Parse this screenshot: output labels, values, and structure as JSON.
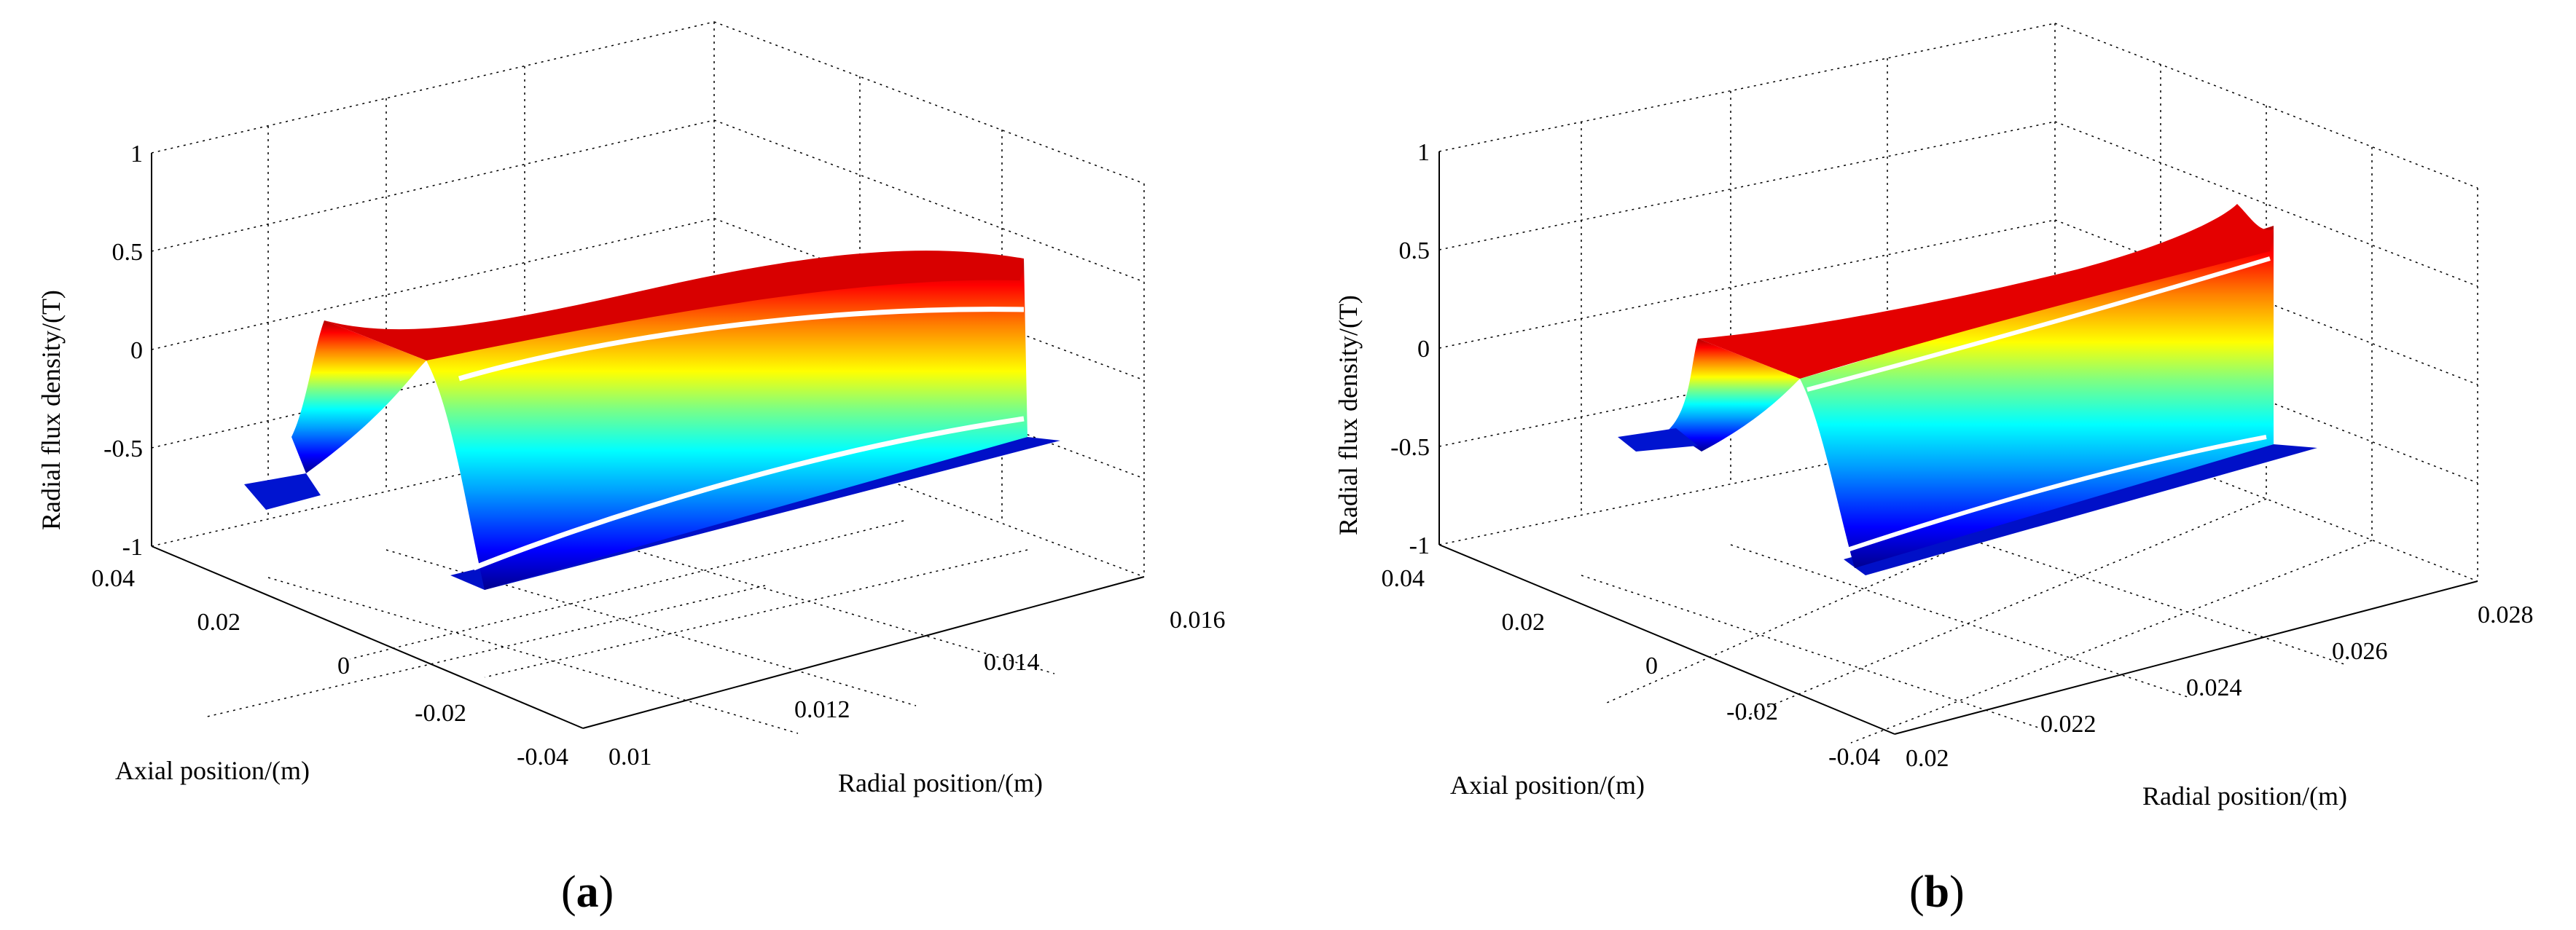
{
  "chart_data": [
    {
      "type": "surface",
      "panel": "a",
      "caption_letter": "a",
      "xlabel": "Radial position/(m)",
      "ylabel": "Axial position/(m)",
      "zlabel": "Radial flux density/(T)",
      "x_ticks": [
        "0.01",
        "0.012",
        "0.014",
        "0.016"
      ],
      "y_ticks": [
        "0.04",
        "0.02",
        "0",
        "-0.02",
        "-0.04"
      ],
      "z_ticks": [
        "1",
        "0.5",
        "0",
        "-0.5",
        "-1"
      ],
      "xlim": [
        0.01,
        0.016
      ],
      "ylim": [
        -0.04,
        0.04
      ],
      "zlim": [
        -1,
        1
      ],
      "grid": true,
      "colormap": [
        "#00008f",
        "#0000ff",
        "#00a0ff",
        "#00ffff",
        "#80ff80",
        "#ffff00",
        "#ff8000",
        "#ff0000",
        "#8f0000"
      ],
      "axial_profile": {
        "y": [
          0.04,
          0.026,
          0.022,
          0.013,
          0.009,
          -0.04
        ],
        "z": [
          -0.8,
          -0.8,
          0.15,
          0.15,
          -1.0,
          -1.0
        ]
      },
      "radial_end_values": {
        "r_start": 0.01,
        "r_end": 0.016,
        "z_high_start": 0.15,
        "z_high_end": 0.38,
        "z_low_start": -1.0,
        "z_low_end": -0.55
      }
    },
    {
      "type": "surface",
      "panel": "b",
      "caption_letter": "b",
      "xlabel": "Radial position/(m)",
      "ylabel": "Axial position/(m)",
      "zlabel": "Radial flux density/(T)",
      "x_ticks": [
        "0.02",
        "0.022",
        "0.024",
        "0.026",
        "0.028"
      ],
      "y_ticks": [
        "0.04",
        "0.02",
        "0",
        "-0.02",
        "-0.04"
      ],
      "z_ticks": [
        "1",
        "0.5",
        "0",
        "-0.5",
        "-1"
      ],
      "xlim": [
        0.02,
        0.028
      ],
      "ylim": [
        -0.04,
        0.04
      ],
      "zlim": [
        -1,
        1
      ],
      "grid": true,
      "colormap": [
        "#00008f",
        "#0000ff",
        "#00a0ff",
        "#00ffff",
        "#80ff80",
        "#ffff00",
        "#ff8000",
        "#ff0000",
        "#8f0000"
      ],
      "axial_profile": {
        "y": [
          0.04,
          0.024,
          0.02,
          0.012,
          0.008,
          -0.04
        ],
        "z": [
          -0.55,
          -0.55,
          0.05,
          0.05,
          -0.95,
          -0.95
        ]
      },
      "radial_end_values": {
        "r_start": 0.02,
        "r_end": 0.028,
        "z_high_start": 0.05,
        "z_high_end": 0.45,
        "z_low_start": -0.95,
        "z_low_end": -0.6
      }
    }
  ]
}
